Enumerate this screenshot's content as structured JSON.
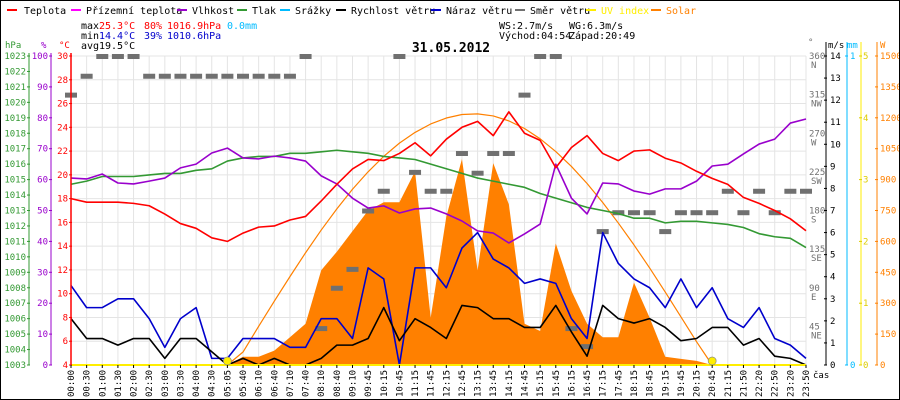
{
  "legend": [
    {
      "label": "Teplota",
      "color": "#ff0000"
    },
    {
      "label": "Přízemní teplota",
      "color": "#ff00ff"
    },
    {
      "label": "Vlhkost",
      "color": "#9900cc"
    },
    {
      "label": "Tlak",
      "color": "#339933"
    },
    {
      "label": "Srážky",
      "color": "#00bbff"
    },
    {
      "label": "Rychlost větru",
      "color": "#000000"
    },
    {
      "label": "Náraz větru",
      "color": "#0000cc"
    },
    {
      "label": "Směr větru",
      "color": "#707070"
    },
    {
      "label": "UV index",
      "color": "#ffee00"
    },
    {
      "label": "Solar",
      "color": "#ff8000"
    }
  ],
  "stats": {
    "max_label": "max",
    "max_temp": "25.3°C",
    "max_hum": "80%",
    "max_press": "1016.9hPa",
    "rain": "0.0mm",
    "min_label": "min",
    "min_temp": "14.4°C",
    "min_hum": "39%",
    "min_press": "1010.6hPa",
    "avg_label": "avg",
    "avg_temp": "19.5°C",
    "ws": "WS:2.7m/s",
    "wg": "WG:6.3m/s",
    "sunrise": "Východ:04:54",
    "sunset": "Západ:20:49"
  },
  "title": "31.05.2012",
  "chart_data": {
    "type": "line",
    "title": "31.05.2012",
    "xlabel": "čas",
    "x": [
      "00:00",
      "00:30",
      "01:00",
      "01:30",
      "02:00",
      "02:30",
      "03:00",
      "03:30",
      "04:00",
      "04:30",
      "05:05",
      "05:40",
      "06:10",
      "06:40",
      "07:10",
      "07:40",
      "08:10",
      "08:40",
      "09:10",
      "09:45",
      "10:15",
      "10:45",
      "11:15",
      "11:45",
      "12:15",
      "12:45",
      "13:15",
      "13:45",
      "14:15",
      "14:45",
      "15:15",
      "15:45",
      "16:15",
      "16:45",
      "17:15",
      "17:45",
      "18:15",
      "18:45",
      "19:15",
      "19:45",
      "20:15",
      "20:45",
      "21:15",
      "21:50",
      "22:20",
      "22:50",
      "23:20",
      "23:50"
    ],
    "axes": {
      "pressure": {
        "unit": "hPa",
        "range": [
          1003,
          1023
        ]
      },
      "humidity": {
        "unit": "%",
        "range": [
          0,
          100
        ]
      },
      "temperature": {
        "unit": "°C",
        "range": [
          4,
          30
        ]
      },
      "direction": {
        "unit": "°",
        "range": [
          0,
          360
        ],
        "ticks": [
          {
            "deg": "360",
            "name": "N"
          },
          {
            "deg": "315",
            "name": "NW"
          },
          {
            "deg": "270",
            "name": "W"
          },
          {
            "deg": "225",
            "name": "SW"
          },
          {
            "deg": "180",
            "name": "S"
          },
          {
            "deg": "135",
            "name": "SE"
          },
          {
            "deg": "90",
            "name": "E"
          },
          {
            "deg": "45",
            "name": "NE"
          }
        ]
      },
      "wind": {
        "unit": "m/s",
        "range": [
          0,
          14
        ]
      },
      "rain": {
        "unit": "mm",
        "range": [
          0,
          1
        ]
      },
      "uv": {
        "unit": "",
        "range": [
          0,
          5
        ]
      },
      "solar": {
        "unit": "W",
        "range": [
          0,
          1500
        ]
      }
    },
    "series": [
      {
        "name": "Teplota",
        "axis": "temperature",
        "color": "#ff0000",
        "values": [
          18.0,
          17.7,
          17.7,
          17.7,
          17.6,
          17.4,
          16.7,
          15.9,
          15.5,
          14.7,
          14.4,
          15.1,
          15.6,
          15.7,
          16.2,
          16.5,
          17.8,
          19.2,
          20.5,
          21.3,
          21.2,
          21.8,
          22.7,
          21.6,
          23.0,
          24.0,
          24.5,
          23.3,
          25.3,
          23.5,
          22.9,
          20.6,
          22.3,
          23.3,
          21.8,
          21.2,
          22.0,
          22.1,
          21.4,
          21.0,
          20.3,
          19.7,
          19.2,
          18.1,
          17.6,
          17.0,
          16.3,
          15.3
        ]
      },
      {
        "name": "Vlhkost",
        "axis": "humidity",
        "color": "#9900cc",
        "values": [
          60.5,
          60.2,
          61.8,
          58.9,
          58.6,
          59.5,
          60.5,
          63.8,
          65.0,
          68.6,
          70.2,
          67.0,
          66.7,
          67.6,
          67.0,
          66.0,
          61.2,
          58.6,
          54.0,
          50.8,
          51.5,
          49.2,
          50.5,
          50.8,
          48.9,
          46.6,
          43.4,
          42.7,
          39.5,
          42.4,
          45.6,
          65.0,
          54.0,
          48.9,
          58.9,
          58.6,
          56.3,
          55.3,
          57.0,
          57.0,
          59.5,
          64.4,
          65.0,
          68.3,
          71.5,
          73.1,
          78.3,
          79.6
        ]
      },
      {
        "name": "Tlak",
        "axis": "pressure",
        "color": "#339933",
        "values": [
          1014.7,
          1014.9,
          1015.2,
          1015.2,
          1015.2,
          1015.3,
          1015.4,
          1015.4,
          1015.6,
          1015.7,
          1016.2,
          1016.4,
          1016.5,
          1016.5,
          1016.7,
          1016.7,
          1016.8,
          1016.9,
          1016.8,
          1016.7,
          1016.5,
          1016.4,
          1016.3,
          1016.0,
          1015.7,
          1015.4,
          1015.1,
          1014.9,
          1014.7,
          1014.5,
          1014.1,
          1013.8,
          1013.5,
          1013.2,
          1013.0,
          1012.8,
          1012.5,
          1012.5,
          1012.2,
          1012.3,
          1012.3,
          1012.2,
          1012.1,
          1011.9,
          1011.5,
          1011.3,
          1011.2,
          1010.6
        ]
      },
      {
        "name": "Rychlost větru",
        "axis": "wind",
        "color": "#000000",
        "values": [
          2.1,
          1.2,
          1.2,
          0.9,
          1.2,
          1.2,
          0.3,
          1.2,
          1.2,
          0.6,
          0,
          0.3,
          0,
          0.3,
          0,
          0,
          0.3,
          0.9,
          0.9,
          1.2,
          2.6,
          1.1,
          2.1,
          1.7,
          1.2,
          2.7,
          2.6,
          2.1,
          2.1,
          1.7,
          1.7,
          2.7,
          1.5,
          0.4,
          2.7,
          2.1,
          1.9,
          2.1,
          1.7,
          1.1,
          1.2,
          1.7,
          1.7,
          0.9,
          1.2,
          0.4,
          0.3,
          0
        ]
      },
      {
        "name": "Náraz větru",
        "axis": "wind",
        "color": "#0000cc",
        "values": [
          3.6,
          2.6,
          2.6,
          3.0,
          3.0,
          2.1,
          0.8,
          2.1,
          2.6,
          0.3,
          0.3,
          1.2,
          1.2,
          1.2,
          0.8,
          0.8,
          2.1,
          2.1,
          1.2,
          4.4,
          3.9,
          0,
          4.4,
          4.4,
          3.5,
          5.3,
          6.0,
          4.8,
          4.4,
          3.7,
          3.9,
          3.7,
          2.1,
          1.2,
          6.0,
          4.6,
          3.9,
          3.5,
          2.6,
          3.9,
          2.6,
          3.5,
          2.1,
          1.7,
          2.6,
          1.2,
          0.9,
          0.3
        ]
      },
      {
        "name": "Směr větru",
        "axis": "direction",
        "color": "#707070",
        "values": [
          315,
          337,
          360,
          360,
          360,
          337,
          337,
          337,
          337,
          337,
          337,
          337,
          337,
          337,
          337,
          360,
          43,
          90,
          112,
          180,
          203,
          360,
          225,
          203,
          203,
          247,
          224,
          247,
          247,
          315,
          360,
          360,
          43,
          22,
          156,
          178,
          178,
          178,
          156,
          178,
          178,
          178,
          203,
          178,
          203,
          178,
          203,
          203
        ]
      },
      {
        "name": "Solar",
        "axis": "solar",
        "color": "#ff8000",
        "kind": "area",
        "values": [
          0,
          0,
          0,
          0,
          0,
          0,
          0,
          0,
          0,
          0,
          0,
          40,
          40,
          70,
          135,
          200,
          460,
          550,
          650,
          750,
          790,
          790,
          940,
          230,
          720,
          1000,
          460,
          980,
          780,
          200,
          165,
          590,
          360,
          200,
          135,
          135,
          400,
          230,
          40,
          30,
          20,
          0,
          0,
          0,
          0,
          0,
          0,
          0
        ]
      },
      {
        "name": "Solar max",
        "axis": "solar",
        "color": "#ff8000",
        "values": [
          0,
          0,
          0,
          0,
          0,
          0,
          0,
          0,
          0,
          0,
          0,
          63,
          188,
          310,
          429,
          545,
          655,
          758,
          853,
          938,
          1013,
          1077,
          1129,
          1170,
          1199,
          1216,
          1219,
          1209,
          1185,
          1148,
          1098,
          1036,
          964,
          881,
          789,
          689,
          583,
          471,
          354,
          234,
          113,
          0,
          0,
          0,
          0,
          0,
          0,
          0
        ]
      },
      {
        "name": "UV index",
        "axis": "uv",
        "color": "#ffee00",
        "values": [
          0,
          0,
          0,
          0,
          0,
          0,
          0,
          0,
          0,
          0,
          0,
          0,
          0,
          0,
          0,
          0,
          0,
          0,
          0,
          0,
          0,
          0,
          0,
          0,
          0,
          0,
          0,
          0,
          0,
          0,
          0,
          0,
          0,
          0,
          0,
          0,
          0,
          0,
          0,
          0,
          0,
          0,
          0,
          0,
          0,
          0,
          0,
          0
        ]
      },
      {
        "name": "Srážky",
        "axis": "rain",
        "color": "#00bbff",
        "values": [
          0,
          0,
          0,
          0,
          0,
          0,
          0,
          0,
          0,
          0,
          0,
          0,
          0,
          0,
          0,
          0,
          0,
          0,
          0,
          0,
          0,
          0,
          0,
          0,
          0,
          0,
          0,
          0,
          0,
          0,
          0,
          0,
          0,
          0,
          0,
          0,
          0,
          0,
          0,
          0,
          0,
          0,
          0,
          0,
          0,
          0,
          0,
          0
        ]
      }
    ],
    "uv_markers": [
      "05:05",
      "20:45"
    ]
  }
}
